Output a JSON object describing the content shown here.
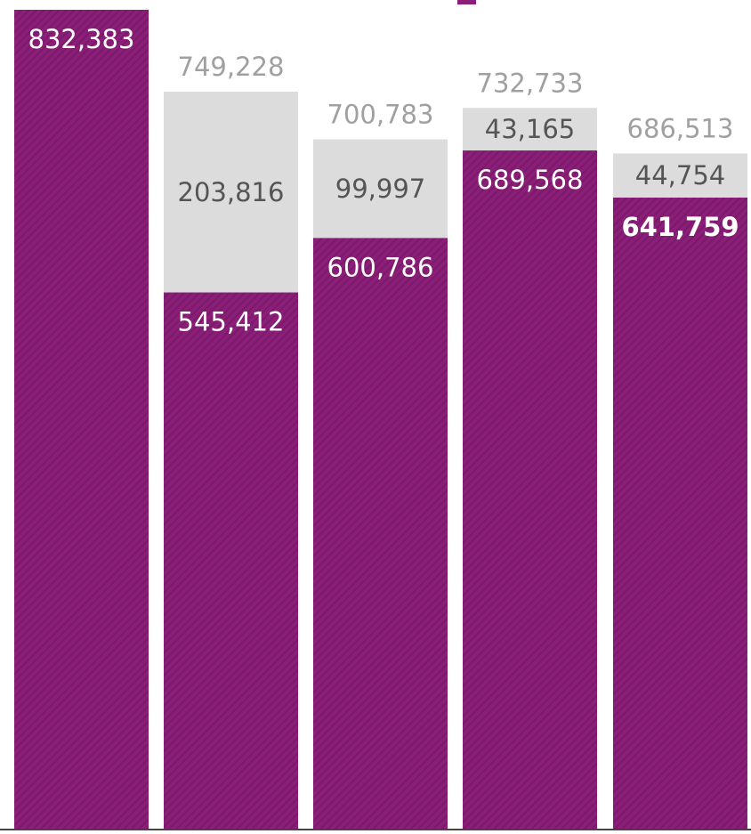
{
  "chart_data": {
    "type": "bar",
    "stacked": true,
    "title": "",
    "xlabel": "",
    "ylabel": "",
    "ylim": [
      0,
      832383
    ],
    "grid": false,
    "legend": "none",
    "bars": [
      {
        "total": null,
        "values": [
          832383,
          null
        ]
      },
      {
        "total": 749228,
        "values": [
          545412,
          203816
        ]
      },
      {
        "total": 700783,
        "values": [
          600786,
          99997
        ]
      },
      {
        "total": 732733,
        "values": [
          689568,
          43165
        ]
      },
      {
        "total": 686513,
        "values": [
          641759,
          44754
        ]
      }
    ],
    "value_labels": [
      [
        "832,383",
        ""
      ],
      [
        "545,412",
        "203,816"
      ],
      [
        "600,786",
        "99,997"
      ],
      [
        "689,568",
        "43,165"
      ],
      [
        "641,759",
        "44,754"
      ]
    ],
    "total_labels": [
      "",
      "749,228",
      "700,783",
      "732,733",
      "686,513"
    ],
    "highlighted_label": "641,759"
  },
  "colors": {
    "primary": "#8b1e78",
    "stripe": "#7a1a69",
    "secondary": "#dcdcdc",
    "label_on_primary": "#ffffff",
    "label_on_secondary": "#555555",
    "total_label": "#a0a0a0",
    "baseline": "#444444",
    "accent": "#8b1e78"
  }
}
